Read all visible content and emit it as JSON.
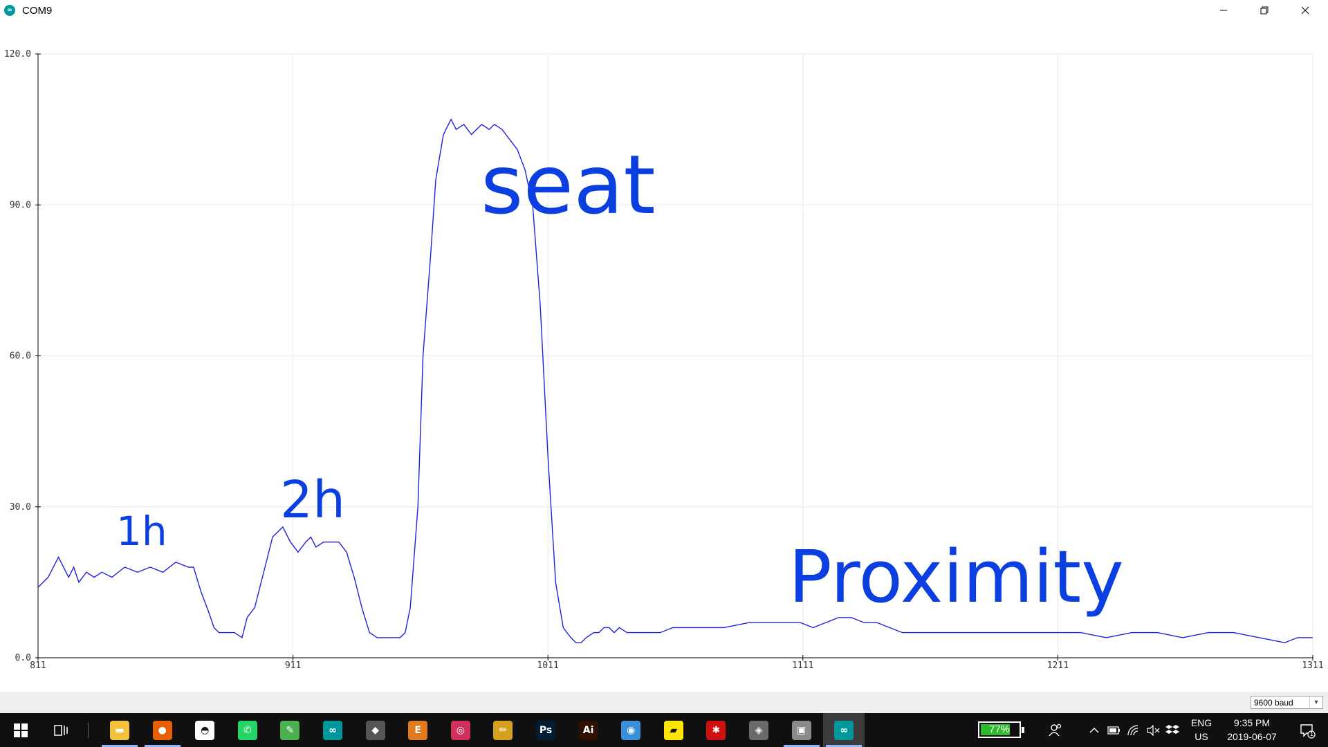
{
  "window": {
    "title": "COM9",
    "icon": "arduino-icon",
    "controls": [
      "minimize-icon",
      "restore-icon",
      "close-icon"
    ]
  },
  "chart_data": {
    "type": "line",
    "xlim": [
      811,
      1311
    ],
    "ylim": [
      0,
      120
    ],
    "x_ticks": [
      "811",
      "911",
      "1011",
      "1111",
      "1211",
      "1311"
    ],
    "y_ticks": [
      "0.0",
      "30.0",
      "60.0",
      "90.0",
      "120.0"
    ],
    "grid": true,
    "series_color": "#2020e0",
    "series": [
      {
        "x": [
          811,
          815,
          819,
          823,
          825,
          827,
          830,
          833,
          836,
          840,
          845,
          850,
          855,
          860,
          865,
          870,
          872,
          875,
          878,
          880,
          882,
          884,
          888,
          891,
          893,
          896,
          900,
          903,
          907,
          910,
          913,
          916,
          918,
          920,
          923,
          926,
          929,
          932,
          935,
          938,
          941,
          944,
          947,
          950,
          953,
          955,
          957,
          960,
          962,
          965,
          967,
          970,
          973,
          975,
          978,
          981,
          985,
          988,
          990,
          993,
          996,
          999,
          1002,
          1005,
          1008,
          1011,
          1014,
          1017,
          1020,
          1022,
          1024,
          1026,
          1029,
          1031,
          1033,
          1035,
          1037,
          1039,
          1042,
          1046,
          1050,
          1055,
          1060,
          1070,
          1080,
          1090,
          1100,
          1105,
          1110,
          1115,
          1120,
          1125,
          1130,
          1135,
          1140,
          1145,
          1150,
          1160,
          1170,
          1180,
          1190,
          1200,
          1210,
          1220,
          1230,
          1240,
          1250,
          1260,
          1270,
          1280,
          1290,
          1300,
          1305,
          1311
        ],
        "y": [
          14,
          16,
          20,
          16,
          18,
          15,
          17,
          16,
          17,
          16,
          18,
          17,
          18,
          17,
          19,
          18,
          18,
          13,
          9,
          6,
          5,
          5,
          5,
          4,
          8,
          10,
          18,
          24,
          26,
          23,
          21,
          23,
          24,
          22,
          23,
          23,
          23,
          21,
          16,
          10,
          5,
          4,
          4,
          4,
          4,
          5,
          10,
          30,
          60,
          80,
          95,
          104,
          107,
          105,
          106,
          104,
          106,
          105,
          106,
          105,
          103,
          101,
          97,
          90,
          70,
          40,
          15,
          6,
          4,
          3,
          3,
          4,
          5,
          5,
          6,
          6,
          5,
          6,
          5,
          5,
          5,
          5,
          6,
          6,
          6,
          7,
          7,
          7,
          7,
          6,
          7,
          8,
          8,
          7,
          7,
          6,
          5,
          5,
          5,
          5,
          5,
          5,
          5,
          5,
          4,
          5,
          5,
          4,
          5,
          5,
          4,
          3,
          4,
          4
        ]
      }
    ]
  },
  "annotations": {
    "one": "1h",
    "two": "2h",
    "seat": "seat",
    "proximity": "Proximity"
  },
  "baud": {
    "value": "9600 baud"
  },
  "taskbar": {
    "apps": [
      {
        "name": "file-explorer-icon",
        "color": "#f3c13a",
        "glyph": "▬"
      },
      {
        "name": "firefox-icon",
        "color": "#e66000",
        "glyph": "●"
      },
      {
        "name": "photos-icon",
        "color": "#ffffff",
        "glyph": "◓"
      },
      {
        "name": "whatsapp-icon",
        "color": "#25d366",
        "glyph": "✆"
      },
      {
        "name": "notepad-icon",
        "color": "#4caf50",
        "glyph": "✎"
      },
      {
        "name": "arduino-icon",
        "color": "#00979c",
        "glyph": "∞"
      },
      {
        "name": "device-icon",
        "color": "#555555",
        "glyph": "◆"
      },
      {
        "name": "eagle-icon",
        "color": "#e07a1f",
        "glyph": "E"
      },
      {
        "name": "app-icon",
        "color": "#d0315a",
        "glyph": "◎"
      },
      {
        "name": "pencil-icon",
        "color": "#d4a020",
        "glyph": "✏"
      },
      {
        "name": "photoshop-icon",
        "color": "#001d34",
        "glyph": "Ps"
      },
      {
        "name": "illustrator-icon",
        "color": "#2e1100",
        "glyph": "Ai"
      },
      {
        "name": "camera-icon",
        "color": "#3a8fd8",
        "glyph": "◉"
      },
      {
        "name": "sticky-notes-icon",
        "color": "#ffe600",
        "glyph": "▰"
      },
      {
        "name": "ant-icon",
        "color": "#d01010",
        "glyph": "✱"
      },
      {
        "name": "git-icon",
        "color": "#6a6a6a",
        "glyph": "◈"
      },
      {
        "name": "vm-icon",
        "color": "#8a8a8a",
        "glyph": "▣"
      },
      {
        "name": "arduino-serial-icon",
        "color": "#00979c",
        "glyph": "∞"
      }
    ],
    "battery_percent": "77%",
    "battery_level": 0.77,
    "lang_line1": "ENG",
    "lang_line2": "US",
    "time": "9:35 PM",
    "date": "2019-06-07",
    "notification_count": "1"
  }
}
